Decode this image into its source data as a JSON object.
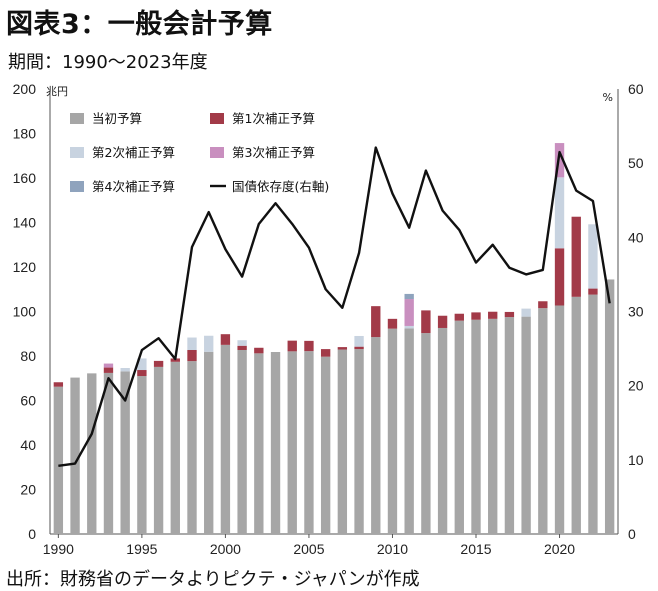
{
  "header": {
    "title": "図表3：一般会計予算",
    "subtitle": "期間：1990～2023年度"
  },
  "footer": {
    "source": "出所：財務省のデータよりピクテ・ジャパンが作成"
  },
  "chart_data": {
    "type": "bar",
    "stacked": true,
    "y_unit_left": "兆円",
    "y_unit_right": "%",
    "ylim_left": [
      0,
      200
    ],
    "ylim_right": [
      0,
      60
    ],
    "yticks_left": [
      "0",
      "20",
      "40",
      "60",
      "80",
      "100",
      "120",
      "140",
      "160",
      "180",
      "200"
    ],
    "yticks_right": [
      "0",
      "10",
      "20",
      "30",
      "40",
      "50",
      "60"
    ],
    "xtick_labels": [
      "1990",
      "1995",
      "2000",
      "2005",
      "2010",
      "2015",
      "2020"
    ],
    "legend_position": "top-left",
    "categories": [
      1990,
      1991,
      1992,
      1993,
      1994,
      1995,
      1996,
      1997,
      1998,
      1999,
      2000,
      2001,
      2002,
      2003,
      2004,
      2005,
      2006,
      2007,
      2008,
      2009,
      2010,
      2011,
      2012,
      2013,
      2014,
      2015,
      2016,
      2017,
      2018,
      2019,
      2020,
      2021,
      2022,
      2023
    ],
    "series": [
      {
        "name": "当初予算",
        "axis": "left",
        "color": "#a6a6a6",
        "values": [
          66.2,
          70.3,
          72.2,
          72.4,
          73.1,
          71.0,
          75.1,
          77.4,
          77.7,
          81.9,
          85.0,
          82.7,
          81.2,
          81.8,
          82.1,
          82.2,
          79.7,
          82.9,
          83.1,
          88.5,
          92.3,
          92.4,
          90.3,
          92.6,
          95.9,
          96.3,
          96.7,
          97.5,
          97.7,
          101.5,
          102.7,
          106.6,
          107.6,
          114.4
        ]
      },
      {
        "name": "第1次補正予算",
        "axis": "left",
        "color": "#a23a48",
        "values": [
          2.0,
          0.0,
          0.0,
          2.4,
          0.0,
          2.7,
          2.7,
          1.5,
          5.0,
          0.0,
          4.8,
          1.9,
          2.5,
          0.0,
          4.8,
          4.6,
          3.4,
          1.1,
          1.1,
          13.9,
          4.4,
          0.0,
          10.2,
          5.5,
          3.1,
          3.3,
          3.2,
          2.3,
          0.0,
          3.1,
          25.7,
          36.0,
          2.7,
          0.0
        ]
      },
      {
        "name": "第2次補正予算",
        "axis": "left",
        "color": "#c8d3e0",
        "values": [
          0.0,
          0.0,
          0.0,
          0.0,
          1.5,
          5.2,
          0.0,
          0.0,
          5.6,
          7.2,
          0.0,
          2.5,
          0.0,
          0.0,
          0.0,
          0.0,
          0.0,
          0.0,
          4.8,
          0.0,
          0.0,
          1.1,
          0.0,
          0.0,
          0.0,
          0.0,
          0.0,
          0.0,
          3.6,
          0.0,
          31.9,
          0.0,
          28.9,
          0.0
        ]
      },
      {
        "name": "第3次補正予算",
        "axis": "left",
        "color": "#c98fbf",
        "values": [
          0.0,
          0.0,
          0.0,
          1.8,
          0.0,
          0.0,
          0.0,
          0.0,
          0.0,
          0.0,
          0.0,
          0.0,
          0.0,
          0.0,
          0.0,
          0.0,
          0.0,
          0.0,
          0.0,
          0.0,
          0.0,
          12.1,
          0.0,
          0.0,
          0.0,
          0.0,
          0.0,
          0.0,
          0.0,
          0.0,
          15.4,
          0.0,
          0.0,
          0.0
        ]
      },
      {
        "name": "第4次補正予算",
        "axis": "left",
        "color": "#8fa3bd",
        "values": [
          0.0,
          0.0,
          0.0,
          0.0,
          0.0,
          0.0,
          0.0,
          0.0,
          0.0,
          0.0,
          0.0,
          0.0,
          0.0,
          0.0,
          0.0,
          0.0,
          0.0,
          0.0,
          0.0,
          0.0,
          0.0,
          2.3,
          0.0,
          0.0,
          0.0,
          0.0,
          0.0,
          0.0,
          0.0,
          0.0,
          0.0,
          0.0,
          0.0,
          0.0
        ]
      },
      {
        "name": "国債依存度(右軸)",
        "axis": "right",
        "type": "line",
        "color": "#111111",
        "values": [
          9.2,
          9.5,
          13.5,
          21.0,
          18.0,
          24.8,
          26.4,
          23.6,
          38.7,
          43.4,
          38.4,
          34.7,
          41.8,
          44.6,
          41.8,
          38.6,
          33.0,
          30.5,
          37.9,
          52.1,
          45.9,
          41.3,
          49.0,
          43.6,
          41.0,
          36.6,
          39.0,
          35.9,
          35.0,
          35.6,
          51.5,
          46.3,
          44.9,
          31.1
        ]
      }
    ]
  }
}
